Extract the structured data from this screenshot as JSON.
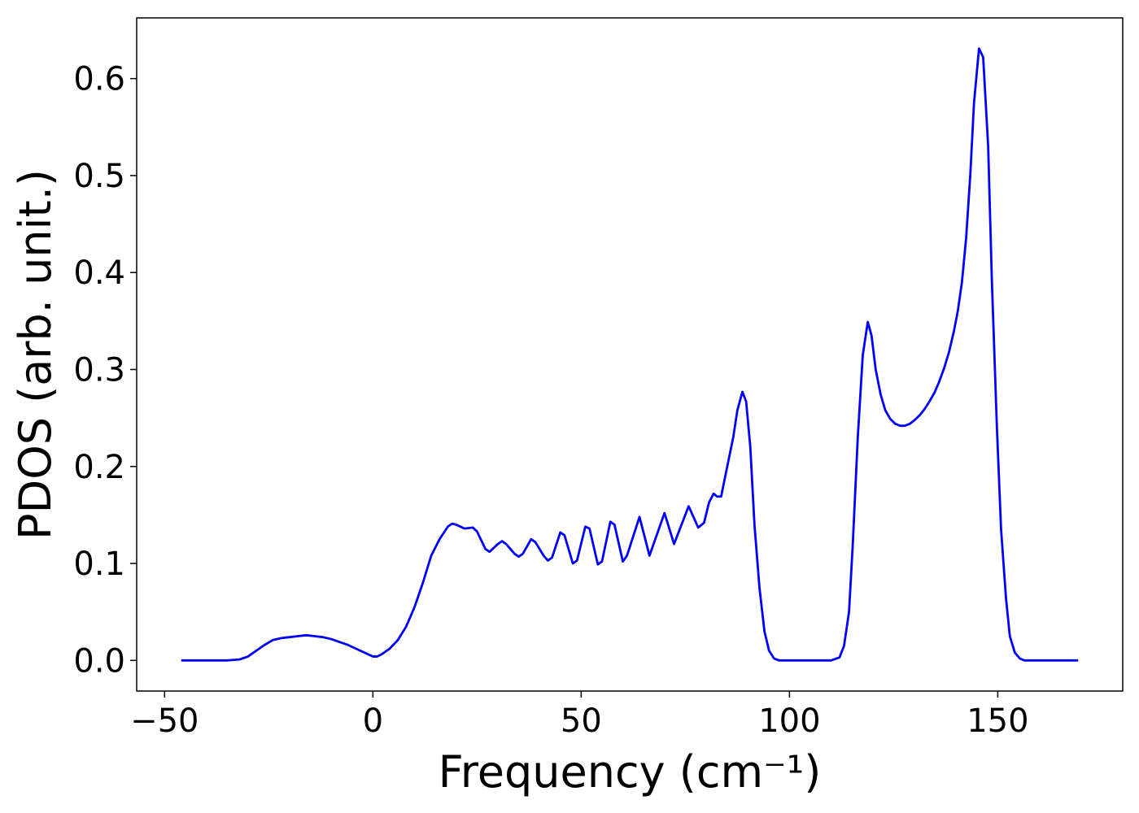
{
  "chart_data": {
    "type": "line",
    "x_label": "Frequency (cm⁻¹)",
    "y_label": "PDOS (arb. unit.)",
    "x": [
      -46,
      -40,
      -35,
      -32,
      -30,
      -28,
      -26,
      -24,
      -22,
      -20,
      -18,
      -16,
      -14,
      -12,
      -10,
      -8,
      -6,
      -4,
      -2,
      0,
      1,
      2,
      4,
      6,
      8,
      10,
      12,
      14,
      16,
      18,
      19,
      20,
      22,
      24,
      25,
      27,
      28,
      30,
      31,
      32,
      34,
      35,
      36,
      38,
      39,
      41,
      42,
      43,
      45,
      46,
      48,
      49,
      51,
      52,
      54,
      55,
      57,
      58,
      60,
      61,
      64,
      66.4,
      70,
      72.3,
      75.8,
      78.1,
      79.5,
      80.7,
      81.8,
      82.6,
      83.6,
      84.4,
      86.5,
      87.5,
      88.7,
      89.6,
      90.6,
      91.6,
      92.8,
      94,
      95.1,
      96.3,
      97.5,
      110,
      112,
      113.1,
      114.3,
      115.2,
      116.4,
      117.6,
      118.8,
      119.7,
      120.7,
      121.9,
      123,
      124.2,
      125.4,
      126.6,
      127.7,
      128.9,
      130.1,
      131.3,
      132.4,
      133.6,
      134.8,
      135.9,
      137.1,
      138.3,
      139.5,
      140.4,
      141.4,
      142.4,
      143.4,
      144.3,
      145.5,
      146.5,
      147.7,
      148.6,
      149.8,
      150.8,
      152,
      152.9,
      154.1,
      155.3,
      156.4,
      169.3
    ],
    "values": [
      0,
      0,
      0,
      0.001,
      0.004,
      0.01,
      0.016,
      0.021,
      0.023,
      0.024,
      0.025,
      0.026,
      0.025,
      0.024,
      0.022,
      0.019,
      0.016,
      0.012,
      0.008,
      0.004,
      0.004,
      0.006,
      0.012,
      0.021,
      0.035,
      0.055,
      0.08,
      0.108,
      0.125,
      0.138,
      0.141,
      0.14,
      0.136,
      0.137,
      0.133,
      0.115,
      0.112,
      0.12,
      0.123,
      0.12,
      0.11,
      0.107,
      0.11,
      0.125,
      0.122,
      0.108,
      0.103,
      0.106,
      0.132,
      0.129,
      0.1,
      0.103,
      0.138,
      0.136,
      0.099,
      0.102,
      0.143,
      0.14,
      0.102,
      0.108,
      0.148,
      0.108,
      0.152,
      0.12,
      0.159,
      0.137,
      0.142,
      0.163,
      0.172,
      0.169,
      0.169,
      0.186,
      0.23,
      0.258,
      0.277,
      0.267,
      0.22,
      0.14,
      0.075,
      0.03,
      0.01,
      0.002,
      0,
      0,
      0.003,
      0.015,
      0.05,
      0.12,
      0.23,
      0.315,
      0.349,
      0.335,
      0.3,
      0.274,
      0.258,
      0.249,
      0.244,
      0.242,
      0.242,
      0.244,
      0.248,
      0.253,
      0.259,
      0.267,
      0.276,
      0.287,
      0.301,
      0.318,
      0.34,
      0.36,
      0.39,
      0.435,
      0.5,
      0.575,
      0.631,
      0.622,
      0.53,
      0.39,
      0.24,
      0.135,
      0.063,
      0.025,
      0.008,
      0.002,
      0,
      0
    ],
    "color": "#0000ff",
    "xlim": [
      -56.7,
      180.0
    ],
    "ylim": [
      -0.0316,
      0.6626
    ],
    "xticks": [
      {
        "value": -50,
        "label": "−50"
      },
      0,
      50,
      100,
      150
    ],
    "yticks": [
      {
        "value": 0,
        "label": "0.0"
      },
      0.1,
      0.2,
      0.3,
      0.4,
      0.5,
      0.6
    ],
    "grid": false
  }
}
